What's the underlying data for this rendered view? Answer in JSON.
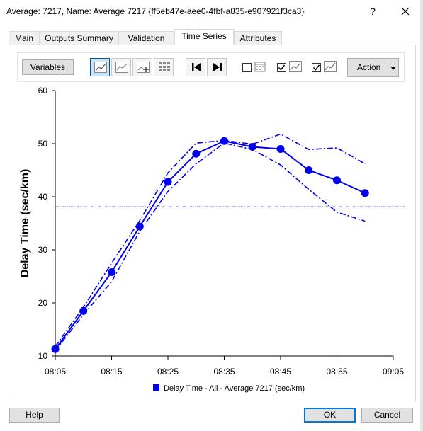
{
  "window": {
    "title": "Average: 7217, Name: Average 7217 {ff5eb47e-aee0-4fbf-a835-e907921f3ca3}",
    "help_glyph": "?",
    "close_glyph": "✕"
  },
  "tabs": [
    {
      "label": "Main"
    },
    {
      "label": "Outputs Summary"
    },
    {
      "label": "Validation"
    },
    {
      "label": "Time Series",
      "active": true
    },
    {
      "label": "Attributes"
    }
  ],
  "toolbar": {
    "variables_label": "Variables",
    "action_label": "Action"
  },
  "footer": {
    "help_label": "Help",
    "ok_label": "OK",
    "cancel_label": "Cancel"
  },
  "colors": {
    "series": "#0000ee",
    "reference_line": "#00008b"
  },
  "chart_data": {
    "type": "line",
    "title": "",
    "xlabel": "",
    "ylabel": "Delay Time (sec/km)",
    "ylim": [
      10,
      60
    ],
    "yticks": [
      "10",
      "20",
      "30",
      "40",
      "50",
      "60"
    ],
    "xticks": [
      "08:05",
      "08:15",
      "08:25",
      "08:35",
      "08:45",
      "08:55",
      "09:05"
    ],
    "x": [
      "08:05",
      "08:10",
      "08:15",
      "08:20",
      "08:25",
      "08:30",
      "08:35",
      "08:40",
      "08:45",
      "08:50",
      "08:55",
      "09:00"
    ],
    "series": [
      {
        "name": "Delay Time - All - Average 7217 (sec/km)",
        "style": "solid-markers",
        "values": [
          11.3,
          18.5,
          25.8,
          34.4,
          42.8,
          48.1,
          50.5,
          49.4,
          49.0,
          45.0,
          43.1,
          40.7
        ]
      },
      {
        "style": "dash-dot",
        "values": [
          11.8,
          19.2,
          27.5,
          35.5,
          44.5,
          50.1,
          50.6,
          49.9,
          51.8,
          48.9,
          49.2,
          46.2
        ]
      },
      {
        "style": "dash-dot",
        "values": [
          11.0,
          17.8,
          24.0,
          33.5,
          41.0,
          46.2,
          50.1,
          48.9,
          46.0,
          41.4,
          37.1,
          35.4
        ]
      }
    ],
    "reference_value": 38.1,
    "legend": {
      "position": "bottom",
      "label": "Delay Time - All - Average 7217 (sec/km)"
    },
    "grid": false
  }
}
